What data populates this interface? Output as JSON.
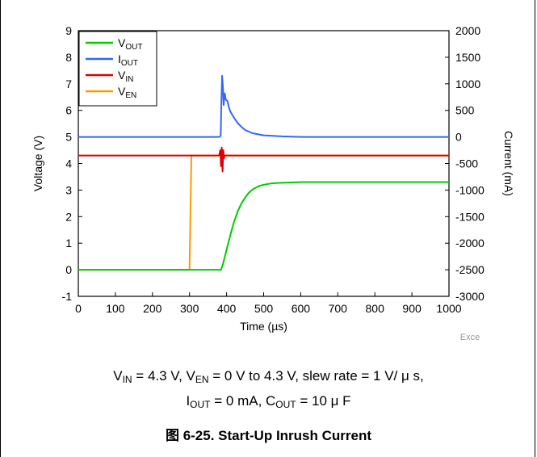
{
  "chart_data": {
    "type": "line",
    "title": "",
    "xlabel": "Time (µs)",
    "ylabel_left": "Voltage (V)",
    "ylabel_right": "Current (mA)",
    "xlim": [
      0,
      1000
    ],
    "ylim_left": [
      -1,
      9
    ],
    "ylim_right": [
      -3000,
      2000
    ],
    "x_ticks": [
      "0",
      "100",
      "200",
      "300",
      "400",
      "500",
      "600",
      "700",
      "800",
      "900",
      "1000"
    ],
    "y_left_ticks": [
      "-1",
      "0",
      "1",
      "2",
      "3",
      "4",
      "5",
      "6",
      "7",
      "8",
      "9"
    ],
    "y_right_ticks": [
      "-3000",
      "-2500",
      "-2000",
      "-1500",
      "-1000",
      "-500",
      "0",
      "500",
      "1000",
      "1500",
      "2000"
    ],
    "grid": false,
    "legend_position": "top-left",
    "watermark": "Exce",
    "series": [
      {
        "name": "VOUT",
        "label_main": "V",
        "label_sub": "OUT",
        "color": "#00cc00",
        "axis": "left",
        "x": [
          0,
          385,
          390,
          400,
          410,
          420,
          430,
          440,
          450,
          460,
          470,
          480,
          490,
          500,
          520,
          540,
          560,
          600,
          700,
          800,
          1000
        ],
        "y": [
          0,
          0,
          0.2,
          0.75,
          1.3,
          1.8,
          2.2,
          2.5,
          2.72,
          2.9,
          3.02,
          3.1,
          3.16,
          3.2,
          3.25,
          3.27,
          3.28,
          3.3,
          3.3,
          3.3,
          3.3
        ]
      },
      {
        "name": "IOUT",
        "label_main": "I",
        "label_sub": "OUT",
        "color": "#3366ff",
        "axis": "right",
        "x": [
          0,
          380,
          384,
          386,
          388,
          390,
          392,
          395,
          398,
          402,
          406,
          410,
          420,
          430,
          440,
          450,
          470,
          500,
          550,
          600,
          1000
        ],
        "y": [
          0,
          0,
          20,
          700,
          1150,
          950,
          600,
          820,
          700,
          680,
          560,
          480,
          360,
          260,
          190,
          130,
          70,
          30,
          10,
          0,
          0
        ]
      },
      {
        "name": "VIN",
        "label_main": "V",
        "label_sub": "IN",
        "color": "#e00000",
        "axis": "left",
        "x": [
          0,
          380,
          383,
          385,
          387,
          389,
          391,
          393,
          395,
          1000
        ],
        "y": [
          4.3,
          4.3,
          4.5,
          3.9,
          4.6,
          3.7,
          4.5,
          4.2,
          4.3,
          4.3
        ]
      },
      {
        "name": "VEN",
        "label_main": "V",
        "label_sub": "EN",
        "color": "#ff9900",
        "axis": "left",
        "x": [
          0,
          300,
          305,
          1000
        ],
        "y": [
          0,
          0,
          4.3,
          4.3
        ]
      }
    ]
  },
  "conditions": {
    "line1_parts": [
      "V",
      "IN",
      " = 4.3 V, V",
      "EN",
      " = 0 V to 4.3 V, slew rate = 1 V/ μ s,"
    ],
    "line2_parts": [
      "I",
      "OUT",
      " = 0 mA, C",
      "OUT",
      " = 10 μ F"
    ]
  },
  "caption": "图 6-25. Start-Up Inrush Current"
}
